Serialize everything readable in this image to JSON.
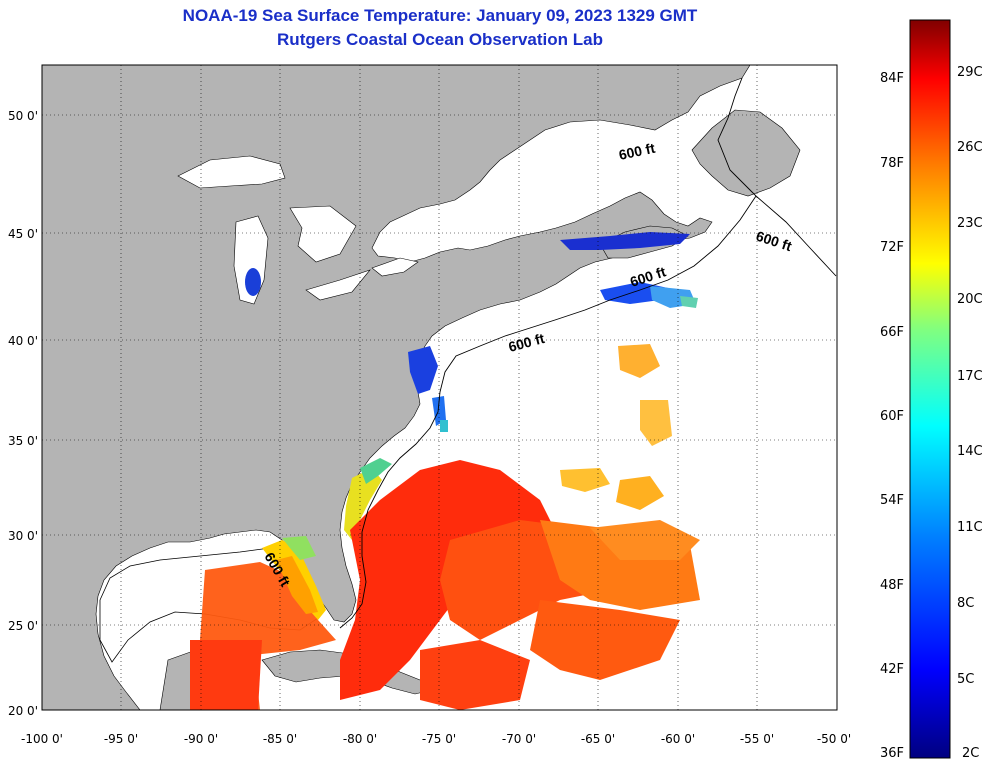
{
  "header": {
    "title_line1": "NOAA-19 Sea Surface Temperature:  January 09, 2023 1329 GMT",
    "title_line2": "Rutgers Coastal Ocean Observation Lab"
  },
  "map": {
    "lat_labels": [
      "50 0'",
      "45 0'",
      "40 0'",
      "35 0'",
      "30 0'",
      "25 0'",
      "20 0'"
    ],
    "lon_labels": [
      "-100 0'",
      "-95 0'",
      "-90 0'",
      "-85 0'",
      "-80 0'",
      "-75 0'",
      "-70 0'",
      "-65 0'",
      "-60 0'",
      "-55 0'",
      "-50 0'"
    ],
    "contour_label": "600 ft",
    "land_color": "#b4b4b4",
    "no_data_color": "#ffffff"
  },
  "colorbar": {
    "fahrenheit_labels": [
      "84F",
      "78F",
      "72F",
      "66F",
      "60F",
      "54F",
      "48F",
      "42F",
      "36F"
    ],
    "celsius_labels": [
      "29C",
      "26C",
      "23C",
      "20C",
      "17C",
      "14C",
      "11C",
      "8C",
      "5C",
      "2C"
    ]
  }
}
